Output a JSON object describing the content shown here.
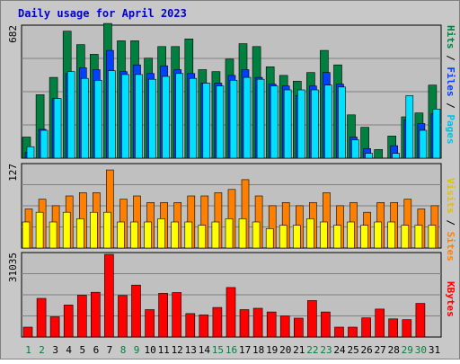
{
  "title": "Daily usage for April 2023",
  "colors": {
    "frame_bg": "#c8c8c8",
    "plot_bg": "#c0c0c0",
    "title": "#0000cc",
    "hits": "#008040",
    "files": "#0040ff",
    "pages": "#00e0ff",
    "visits": "#ff8000",
    "sites": "#ffff00",
    "kbytes": "#ff0000"
  },
  "panels": {
    "top": {
      "max_label": "682",
      "right_labels": [
        {
          "text": "Pages",
          "color": "#00c0e0"
        },
        {
          "text": " / ",
          "color": "#000000"
        },
        {
          "text": "Files",
          "color": "#0040ff"
        },
        {
          "text": " / ",
          "color": "#000000"
        },
        {
          "text": "Hits",
          "color": "#008040"
        }
      ]
    },
    "mid": {
      "max_label": "127",
      "right_labels": [
        {
          "text": "Sites",
          "color": "#ff8000"
        },
        {
          "text": " / ",
          "color": "#000000"
        },
        {
          "text": "Visits",
          "color": "#e0c000"
        }
      ]
    },
    "bottom": {
      "max_label": "31035",
      "right_labels": [
        {
          "text": "KBytes",
          "color": "#ff0000"
        }
      ]
    }
  },
  "chart_data": {
    "type": "bar",
    "title": "Daily usage for April 2023",
    "categories": [
      "1",
      "2",
      "3",
      "4",
      "5",
      "6",
      "7",
      "8",
      "9",
      "10",
      "11",
      "12",
      "13",
      "14",
      "15",
      "16",
      "17",
      "18",
      "19",
      "20",
      "21",
      "22",
      "23",
      "24",
      "25",
      "26",
      "27",
      "28",
      "29",
      "30",
      "31"
    ],
    "weekend_days": [
      "1",
      "2",
      "8",
      "9",
      "15",
      "16",
      "22",
      "23",
      "29",
      "30"
    ],
    "groups": [
      {
        "panel": "top",
        "ymax": 682,
        "series": [
          {
            "name": "Hits",
            "values": [
              110,
              330,
              420,
              660,
              590,
              540,
              700,
              610,
              610,
              520,
              580,
              580,
              620,
              460,
              450,
              515,
              595,
              580,
              475,
              430,
              400,
              445,
              560,
              485,
              225,
              160,
              45,
              115,
              215,
              235,
              380
            ]
          },
          {
            "name": "Files",
            "values": [
              30,
              150,
              310,
              440,
              470,
              460,
              560,
              450,
              485,
              440,
              480,
              460,
              440,
              390,
              390,
              430,
              460,
              420,
              385,
              375,
              325,
              375,
              445,
              385,
              110,
              50,
              0,
              65,
              200,
              180,
              230
            ]
          },
          {
            "name": "Pages",
            "values": [
              60,
              145,
              310,
              450,
              415,
              405,
              455,
              435,
              435,
              410,
              425,
              440,
              415,
              390,
              375,
              405,
              420,
              410,
              375,
              355,
              355,
              355,
              380,
              370,
              95,
              25,
              0,
              25,
              325,
              145,
              255
            ]
          }
        ]
      },
      {
        "panel": "mid",
        "ymax": 127,
        "series": [
          {
            "name": "Visits",
            "values": [
              60,
              75,
              65,
              80,
              85,
              85,
              120,
              75,
              80,
              70,
              70,
              70,
              80,
              80,
              85,
              90,
              105,
              80,
              65,
              70,
              65,
              70,
              85,
              65,
              70,
              55,
              70,
              70,
              75,
              60,
              65
            ]
          },
          {
            "name": "Sites",
            "values": [
              40,
              55,
              40,
              55,
              45,
              55,
              55,
              40,
              40,
              40,
              45,
              40,
              40,
              35,
              40,
              45,
              45,
              40,
              30,
              35,
              35,
              45,
              40,
              35,
              40,
              35,
              40,
              40,
              35,
              35,
              35
            ]
          }
        ]
      },
      {
        "panel": "bottom",
        "ymax": 31035,
        "series": [
          {
            "name": "KBytes",
            "values": [
              3700,
              14500,
              7600,
              12000,
              15700,
              16800,
              31035,
              15600,
              19500,
              10300,
              16400,
              16700,
              8800,
              8300,
              11100,
              18600,
              10300,
              10800,
              9400,
              7900,
              7100,
              13700,
              9400,
              3700,
              3700,
              7200,
              10500,
              6800,
              6500,
              12600,
              0
            ]
          }
        ]
      }
    ]
  }
}
